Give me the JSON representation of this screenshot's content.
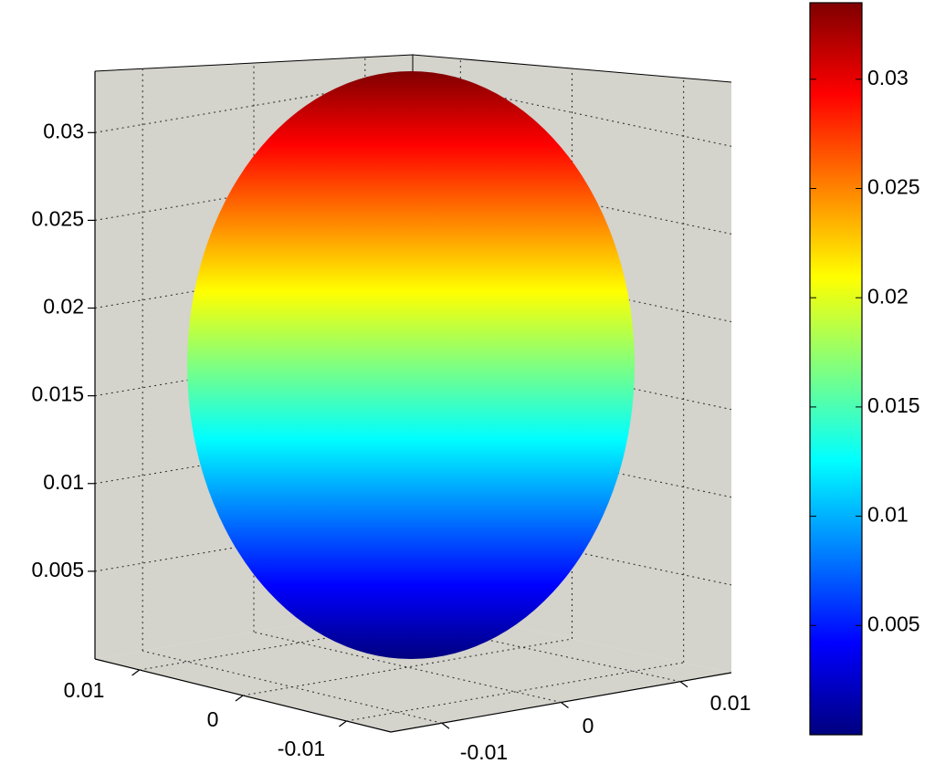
{
  "chart_data": {
    "type": "surface",
    "shape": "ellipsoid",
    "colormap": "jet",
    "grid": true,
    "pane_color": "#d4d3cc",
    "title": "",
    "xlabel": "",
    "ylabel": "",
    "zlabel": "",
    "z_axis": {
      "ticks": [
        0.005,
        0.01,
        0.015,
        0.02,
        0.025,
        0.03
      ],
      "tick_labels": [
        "0.005",
        "0.01",
        "0.015",
        "0.02",
        "0.025",
        "0.03"
      ],
      "range": [
        0,
        0.0335
      ]
    },
    "x_axis": {
      "ticks": [
        -0.01,
        0,
        0.01
      ],
      "tick_labels": [
        "-0.01",
        "0",
        "0.01"
      ]
    },
    "y_axis": {
      "ticks": [
        -0.01,
        0,
        0.01
      ],
      "tick_labels": [
        "-0.01",
        "0",
        "0.01"
      ]
    },
    "colorbar": {
      "placement": "right",
      "range": [
        0,
        0.0335
      ],
      "ticks": [
        0.005,
        0.01,
        0.015,
        0.02,
        0.025,
        0.03
      ],
      "tick_labels": [
        "0.005",
        "0.01",
        "0.015",
        "0.02",
        "0.025",
        "0.03"
      ]
    }
  }
}
